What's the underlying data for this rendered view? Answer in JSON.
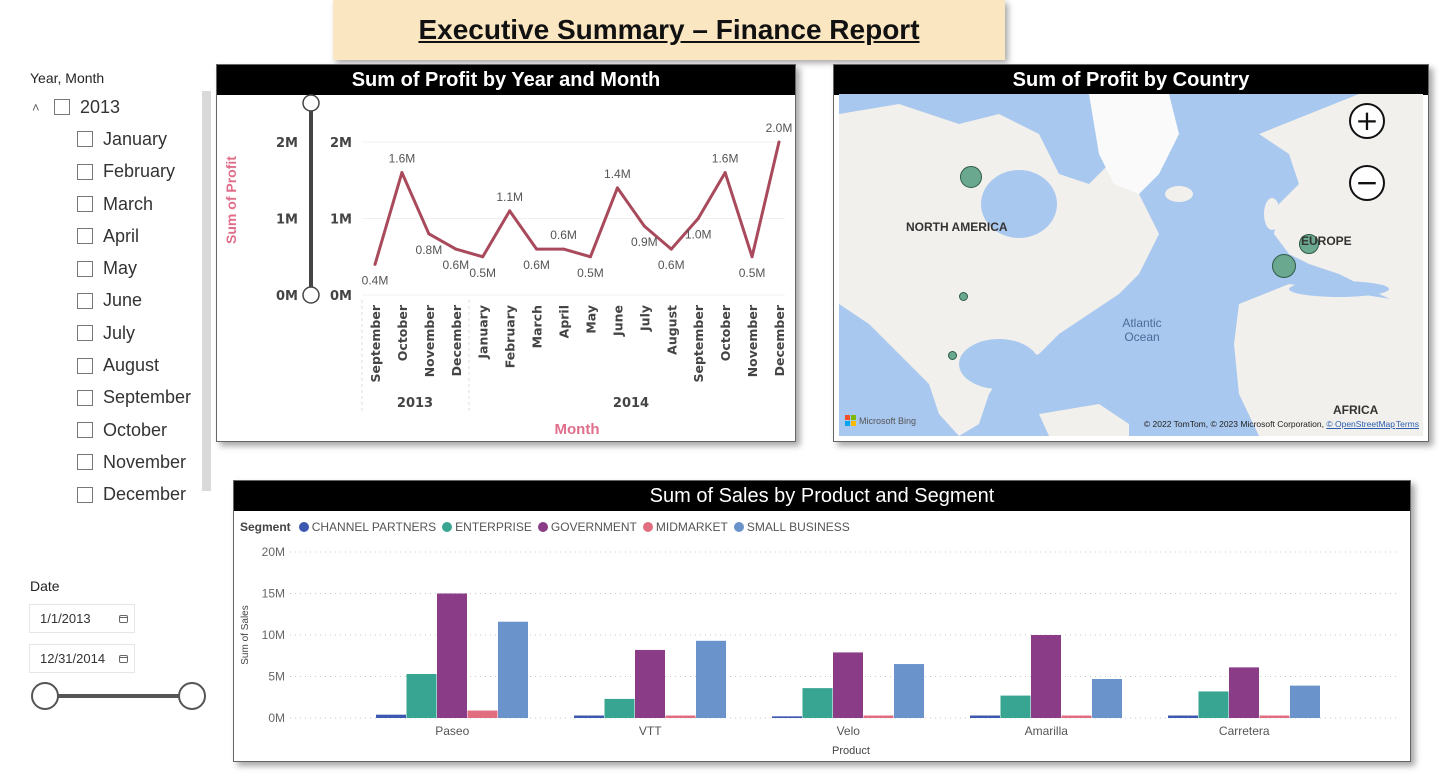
{
  "header": {
    "title": "Executive Summary – Finance Report"
  },
  "slicer_month": {
    "label": "Year, Month",
    "year": "2013",
    "months": [
      "January",
      "February",
      "March",
      "April",
      "May",
      "June",
      "July",
      "August",
      "September",
      "October",
      "November",
      "December"
    ]
  },
  "slicer_date": {
    "label": "Date",
    "start": "1/1/2013",
    "end": "12/31/2014",
    "range_fraction": [
      0,
      1
    ]
  },
  "profit_line": {
    "title": "Sum of Profit by Year and Month",
    "ylabel": "Sum of Profit",
    "xlabel": "Month",
    "y_ticks": [
      "2M",
      "1M",
      "0M"
    ],
    "range_ticks": [
      "2M",
      "1M",
      "0M"
    ],
    "years": [
      "2013",
      "2014"
    ],
    "line_color": "#a84a5c"
  },
  "profit_map": {
    "title": "Sum of Profit by Country",
    "labels": {
      "north_america": "NORTH AMERICA",
      "europe": "EUROPE",
      "ocean": "Atlantic Ocean",
      "africa": "AFRICA"
    },
    "attribution": "© 2022 TomTom, © 2023 Microsoft Corporation,",
    "osm_link": "© OpenStreetMap",
    "terms_link": "Terms",
    "brand": "Microsoft Bing",
    "zoom_in": "+",
    "zoom_out": "−"
  },
  "sales_bar": {
    "title": "Sum of Sales by Product and Segment",
    "legend_title": "Segment",
    "ylabel": "Sum of Sales",
    "xlabel": "Product"
  },
  "chart_data": [
    {
      "type": "line",
      "title": "Sum of Profit by Year and Month",
      "xlabel": "Month",
      "ylabel": "Sum of Profit",
      "categories": [
        "September",
        "October",
        "November",
        "December",
        "January",
        "February",
        "March",
        "April",
        "May",
        "June",
        "July",
        "August",
        "September",
        "October",
        "November",
        "December"
      ],
      "category_years": [
        "2013",
        "2013",
        "2013",
        "2013",
        "2014",
        "2014",
        "2014",
        "2014",
        "2014",
        "2014",
        "2014",
        "2014",
        "2014",
        "2014",
        "2014",
        "2014"
      ],
      "values": [
        0.4,
        1.6,
        0.8,
        0.6,
        0.5,
        1.1,
        0.6,
        0.6,
        0.5,
        1.4,
        0.9,
        0.6,
        1.0,
        1.6,
        0.5,
        2.0
      ],
      "data_labels": [
        "0.4M",
        "1.6M",
        "0.8M",
        "0.6M",
        "0.5M",
        "1.1M",
        "0.6M",
        "0.6M",
        "0.5M",
        "1.4M",
        "0.9M",
        "0.6M",
        "1.0M",
        "1.6M",
        "0.5M",
        "2.0M"
      ],
      "units": "M",
      "ylim": [
        0,
        2
      ],
      "y_ticks": [
        "0M",
        "1M",
        "2M"
      ],
      "grid": true
    },
    {
      "type": "bar",
      "title": "Sum of Sales by Product and Segment",
      "xlabel": "Product",
      "ylabel": "Sum of Sales",
      "categories": [
        "Paseo",
        "VTT",
        "Velo",
        "Amarilla",
        "Carretera"
      ],
      "series": [
        {
          "name": "CHANNEL PARTNERS",
          "color": "#3c58b0",
          "values": [
            0.4,
            0.3,
            0.2,
            0.3,
            0.3
          ]
        },
        {
          "name": "ENTERPRISE",
          "color": "#37a592",
          "values": [
            5.3,
            2.3,
            3.6,
            2.7,
            3.2
          ]
        },
        {
          "name": "GOVERNMENT",
          "color": "#8a3c86",
          "values": [
            15.0,
            8.2,
            7.9,
            10.0,
            6.1
          ]
        },
        {
          "name": "MIDMARKET",
          "color": "#e06e80",
          "values": [
            0.9,
            0.3,
            0.3,
            0.3,
            0.3
          ]
        },
        {
          "name": "SMALL BUSINESS",
          "color": "#6a92cb",
          "values": [
            11.6,
            9.3,
            6.5,
            4.7,
            3.9
          ]
        }
      ],
      "units": "M",
      "ylim": [
        0,
        20
      ],
      "y_ticks": [
        "0M",
        "5M",
        "10M",
        "15M",
        "20M"
      ],
      "legend": "top-left",
      "grid": true
    }
  ]
}
